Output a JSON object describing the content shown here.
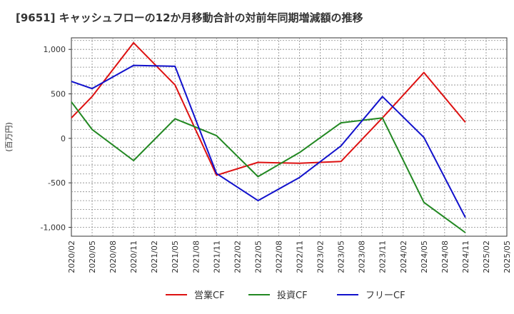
{
  "chart_data": {
    "type": "line",
    "title": "[9651]  キャッシュフローの12か月移動合計の対前年同期増減額の推移",
    "ylabel": "(百万円)",
    "xlabel": "",
    "ylim": [
      -1100,
      1130
    ],
    "yticks": [
      1000,
      500,
      0,
      -500,
      -1000
    ],
    "ytick_labels": [
      "1,000",
      "500",
      "0",
      "-500",
      "-1,000"
    ],
    "x": [
      "2020/02",
      "2020/05",
      "2020/08",
      "2020/11",
      "2021/02",
      "2021/05",
      "2021/08",
      "2021/11",
      "2022/02",
      "2022/05",
      "2022/08",
      "2022/11",
      "2023/02",
      "2023/05",
      "2023/08",
      "2023/11",
      "2024/02",
      "2024/05",
      "2024/08",
      "2024/11",
      "2025/02",
      "2025/05"
    ],
    "grid": true,
    "legend_position": "bottom",
    "series": [
      {
        "name": "営業CF",
        "color": "#dd1111",
        "values": [
          230,
          470,
          null,
          1075,
          null,
          600,
          null,
          -415,
          null,
          -270,
          null,
          -280,
          null,
          -260,
          null,
          230,
          null,
          740,
          null,
          180,
          null,
          null
        ]
      },
      {
        "name": "投資CF",
        "color": "#228822",
        "values": [
          410,
          100,
          null,
          -250,
          null,
          220,
          null,
          30,
          null,
          -430,
          null,
          -160,
          null,
          175,
          null,
          230,
          null,
          -720,
          null,
          -1060,
          null,
          null
        ]
      },
      {
        "name": "フリーCF",
        "color": "#1111cc",
        "values": [
          640,
          560,
          null,
          820,
          null,
          810,
          null,
          -395,
          null,
          -700,
          null,
          -440,
          null,
          -85,
          null,
          470,
          null,
          10,
          null,
          -890,
          null,
          null
        ]
      }
    ]
  }
}
